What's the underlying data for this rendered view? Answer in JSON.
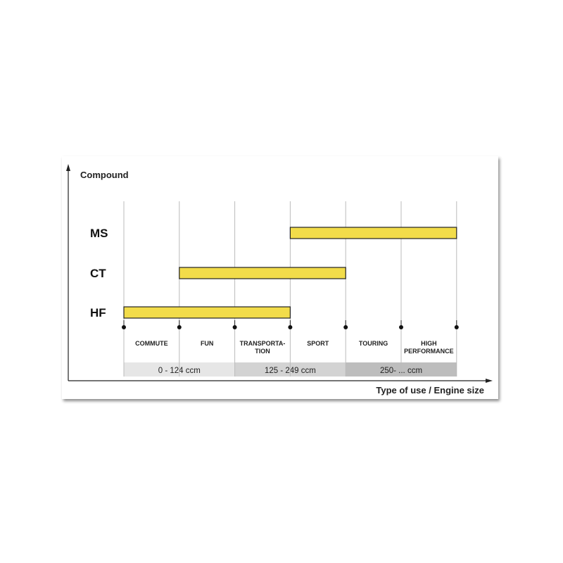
{
  "chart_data": {
    "type": "bar",
    "orientation": "horizontal-range",
    "ylabel": "Compound",
    "xlabel": "Type of use / Engine size",
    "categories": [
      "COMMUTE",
      "FUN",
      "TRANSPORTA-\nTION",
      "SPORT",
      "TOURING",
      "HIGH\nPERFORMANCE"
    ],
    "engine_bands": [
      {
        "label": "0 - 124 ccm",
        "from": 0,
        "to": 2,
        "color": "#e6e6e6"
      },
      {
        "label": "125 - 249 ccm",
        "from": 2,
        "to": 4,
        "color": "#d3d3d3"
      },
      {
        "label": "250- ... ccm",
        "from": 4,
        "to": 6,
        "color": "#bdbdbd"
      }
    ],
    "series": [
      {
        "name": "MS",
        "start": 3,
        "end": 6
      },
      {
        "name": "CT",
        "start": 1,
        "end": 4
      },
      {
        "name": "HF",
        "start": 0,
        "end": 3
      }
    ],
    "bar_color": "#f2dc4a",
    "grid": true
  }
}
